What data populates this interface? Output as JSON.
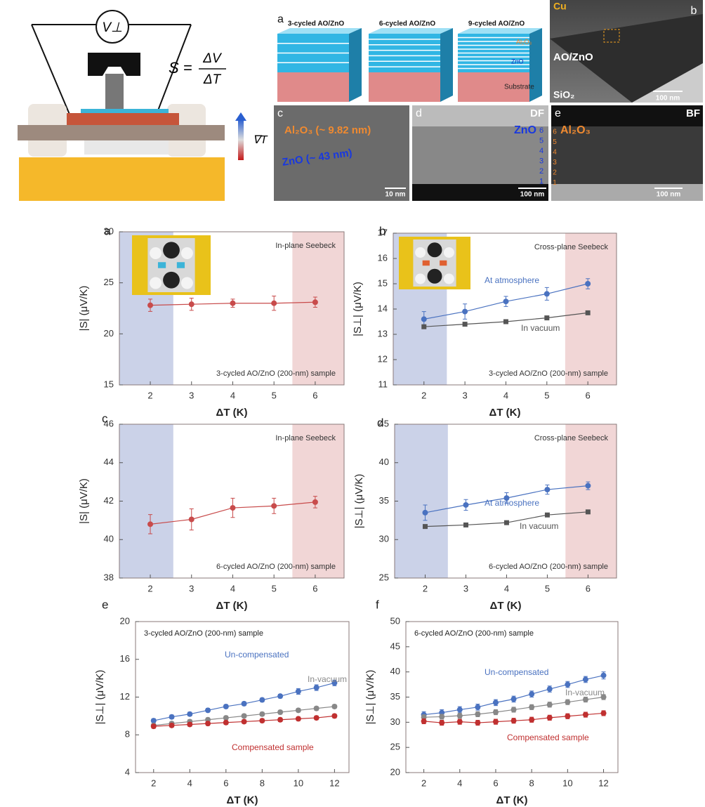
{
  "schematic": {
    "voltage": "V⊥",
    "formula_lhs": "S =",
    "numerator": "ΔV",
    "denominator": "ΔT",
    "gradient": "∇T"
  },
  "micrographs": {
    "panel_a": {
      "label": "a",
      "stacks": [
        "3-cycled AO/ZnO",
        "6-cycled AO/ZnO",
        "9-cycled AO/ZnO"
      ],
      "layers": [
        "Al₂O₃",
        "ZnO",
        "Substrate"
      ]
    },
    "panel_b": {
      "label": "b",
      "top": "Cu",
      "film": "AO/ZnO",
      "substrate": "SiO₂",
      "scale": "100 nm"
    },
    "panel_c": {
      "label": "c",
      "alumina": "Al₂O₃ (~ 9.82 nm)",
      "zinc": "ZnO (~ 43 nm)",
      "scale": "10 nm"
    },
    "panel_d": {
      "label": "d",
      "mode": "DF",
      "layer": "ZnO",
      "indices": [
        "6",
        "5",
        "4",
        "3",
        "2",
        "1"
      ],
      "scale": "100 nm"
    },
    "panel_e": {
      "label": "e",
      "mode": "BF",
      "layer": "Al₂O₃",
      "indices": [
        "6",
        "5",
        "4",
        "3",
        "2",
        "1"
      ],
      "scale": "100 nm"
    }
  },
  "chart_data": [
    {
      "type": "line",
      "panel": "a",
      "title": "In-plane Seebeck",
      "subtitle": "3-cycled AO/ZnO (200-nm) sample",
      "x_label": "ΔT (K)",
      "y_label": "|S| (μV/K)",
      "x": [
        2,
        3,
        4,
        5,
        6
      ],
      "xlim": [
        1.25,
        6.7
      ],
      "xticks": [
        2,
        3,
        4,
        5,
        6
      ],
      "ylim": [
        15,
        30
      ],
      "yticks": [
        15,
        20,
        25,
        30
      ],
      "series": [
        {
          "color": "#c84b4b",
          "marker": "circle",
          "values": [
            22.8,
            22.9,
            23.0,
            23.0,
            23.1
          ],
          "errors": [
            0.6,
            0.6,
            0.4,
            0.7,
            0.5
          ]
        }
      ]
    },
    {
      "type": "line",
      "panel": "b",
      "title": "Cross-plane Seebeck",
      "subtitle": "3-cycled AO/ZnO (200-nm) sample",
      "x_label": "ΔT (K)",
      "y_label": "|S⊥| (μV/K)",
      "x": [
        2,
        3,
        4,
        5,
        6
      ],
      "xlim": [
        1.25,
        6.7
      ],
      "xticks": [
        2,
        3,
        4,
        5,
        6
      ],
      "ylim": [
        11,
        17
      ],
      "yticks": [
        11,
        12,
        13,
        14,
        15,
        16,
        17
      ],
      "series": [
        {
          "name": "At atmosphere",
          "color": "#4a72c0",
          "marker": "circle",
          "values": [
            13.6,
            13.9,
            14.3,
            14.6,
            15.0
          ],
          "errors": [
            0.3,
            0.3,
            0.2,
            0.25,
            0.2
          ]
        },
        {
          "name": "In vacuum",
          "color": "#555555",
          "marker": "square",
          "values": [
            13.3,
            13.4,
            13.5,
            13.65,
            13.85
          ],
          "errors": [
            0.05,
            0.05,
            0.05,
            0.05,
            0.05
          ]
        }
      ]
    },
    {
      "type": "line",
      "panel": "c",
      "title": "In-plane Seebeck",
      "subtitle": "6-cycled AO/ZnO (200-nm) sample",
      "x_label": "ΔT (K)",
      "y_label": "|S| (μV/K)",
      "x": [
        2,
        3,
        4,
        5,
        6
      ],
      "xlim": [
        1.25,
        6.7
      ],
      "xticks": [
        2,
        3,
        4,
        5,
        6
      ],
      "ylim": [
        38,
        46
      ],
      "yticks": [
        38,
        40,
        42,
        44,
        46
      ],
      "series": [
        {
          "color": "#c84b4b",
          "marker": "circle",
          "values": [
            40.8,
            41.05,
            41.65,
            41.75,
            41.95
          ],
          "errors": [
            0.5,
            0.55,
            0.5,
            0.4,
            0.3
          ]
        }
      ]
    },
    {
      "type": "line",
      "panel": "d",
      "title": "Cross-plane Seebeck",
      "subtitle": "6-cycled AO/ZnO (200-nm) sample",
      "x_label": "ΔT (K)",
      "y_label": "|S⊥| (μV/K)",
      "x": [
        2,
        3,
        4,
        5,
        6
      ],
      "xlim": [
        1.25,
        6.7
      ],
      "xticks": [
        2,
        3,
        4,
        5,
        6
      ],
      "ylim": [
        25,
        45
      ],
      "yticks": [
        25,
        30,
        35,
        40,
        45
      ],
      "series": [
        {
          "name": "At atmosphere",
          "color": "#4a72c0",
          "marker": "circle",
          "values": [
            33.5,
            34.5,
            35.4,
            36.5,
            37.0
          ],
          "errors": [
            1.0,
            0.7,
            0.7,
            0.6,
            0.5
          ]
        },
        {
          "name": "In vacuum",
          "color": "#555555",
          "marker": "square",
          "values": [
            31.7,
            31.9,
            32.2,
            33.2,
            33.6
          ],
          "errors": [
            0.2,
            0.2,
            0.2,
            0.2,
            0.2
          ]
        }
      ]
    },
    {
      "type": "line",
      "panel": "e",
      "title": "3-cycled AO/ZnO (200-nm) sample",
      "x_label": "ΔT (K)",
      "y_label": "|S⊥| (μV/K)",
      "x": [
        2,
        3,
        4,
        5,
        6,
        7,
        8,
        9,
        10,
        11,
        12
      ],
      "xlim": [
        1,
        12.8
      ],
      "xticks": [
        2,
        4,
        6,
        8,
        10,
        12
      ],
      "ylim": [
        4,
        20
      ],
      "yticks": [
        4,
        8,
        12,
        16,
        20
      ],
      "series": [
        {
          "name": "Un-compensated",
          "color": "#4a72c0",
          "marker": "circle",
          "values": [
            9.5,
            9.9,
            10.2,
            10.6,
            11.0,
            11.3,
            11.7,
            12.1,
            12.6,
            13.0,
            13.5
          ],
          "errors": [
            0.2,
            0.2,
            0.2,
            0.2,
            0.2,
            0.2,
            0.2,
            0.2,
            0.3,
            0.3,
            0.3
          ]
        },
        {
          "name": "In-vacuum",
          "color": "#888888",
          "marker": "circle",
          "values": [
            9.0,
            9.2,
            9.4,
            9.6,
            9.8,
            10.0,
            10.2,
            10.4,
            10.6,
            10.8,
            11.0
          ],
          "errors": [
            0.2,
            0.2,
            0.2,
            0.2,
            0.2,
            0.2,
            0.2,
            0.2,
            0.2,
            0.2,
            0.2
          ]
        },
        {
          "name": "Compensated sample",
          "color": "#c03030",
          "marker": "circle",
          "values": [
            8.9,
            9.0,
            9.1,
            9.2,
            9.3,
            9.4,
            9.5,
            9.6,
            9.7,
            9.8,
            10.0
          ],
          "errors": [
            0.2,
            0.2,
            0.2,
            0.2,
            0.2,
            0.2,
            0.2,
            0.2,
            0.2,
            0.2,
            0.2
          ]
        }
      ]
    },
    {
      "type": "line",
      "panel": "f",
      "title": "6-cycled AO/ZnO (200-nm) sample",
      "x_label": "ΔT (K)",
      "y_label": "|S⊥| (μV/K)",
      "x": [
        2,
        3,
        4,
        5,
        6,
        7,
        8,
        9,
        10,
        11,
        12
      ],
      "xlim": [
        1,
        12.8
      ],
      "xticks": [
        2,
        4,
        6,
        8,
        10,
        12
      ],
      "ylim": [
        20,
        50
      ],
      "yticks": [
        20,
        25,
        30,
        35,
        40,
        45,
        50
      ],
      "series": [
        {
          "name": "Un-compensated",
          "color": "#4a72c0",
          "marker": "circle",
          "values": [
            31.5,
            31.9,
            32.5,
            33.0,
            33.9,
            34.6,
            35.6,
            36.6,
            37.5,
            38.5,
            39.3
          ],
          "errors": [
            0.6,
            0.6,
            0.6,
            0.6,
            0.6,
            0.6,
            0.6,
            0.6,
            0.6,
            0.6,
            0.7
          ]
        },
        {
          "name": "In-vacuum",
          "color": "#888888",
          "marker": "circle",
          "values": [
            31.0,
            31.1,
            31.3,
            31.6,
            32.0,
            32.5,
            33.0,
            33.5,
            34.0,
            34.5,
            35.0
          ],
          "errors": [
            0.5,
            0.5,
            0.5,
            0.5,
            0.5,
            0.5,
            0.5,
            0.5,
            0.5,
            0.5,
            0.5
          ]
        },
        {
          "name": "Compensated sample",
          "color": "#c03030",
          "marker": "circle",
          "values": [
            30.2,
            29.9,
            30.1,
            29.9,
            30.1,
            30.3,
            30.5,
            30.9,
            31.2,
            31.5,
            31.8
          ],
          "errors": [
            0.5,
            0.5,
            0.5,
            0.5,
            0.5,
            0.5,
            0.5,
            0.5,
            0.5,
            0.5,
            0.5
          ]
        }
      ]
    }
  ]
}
